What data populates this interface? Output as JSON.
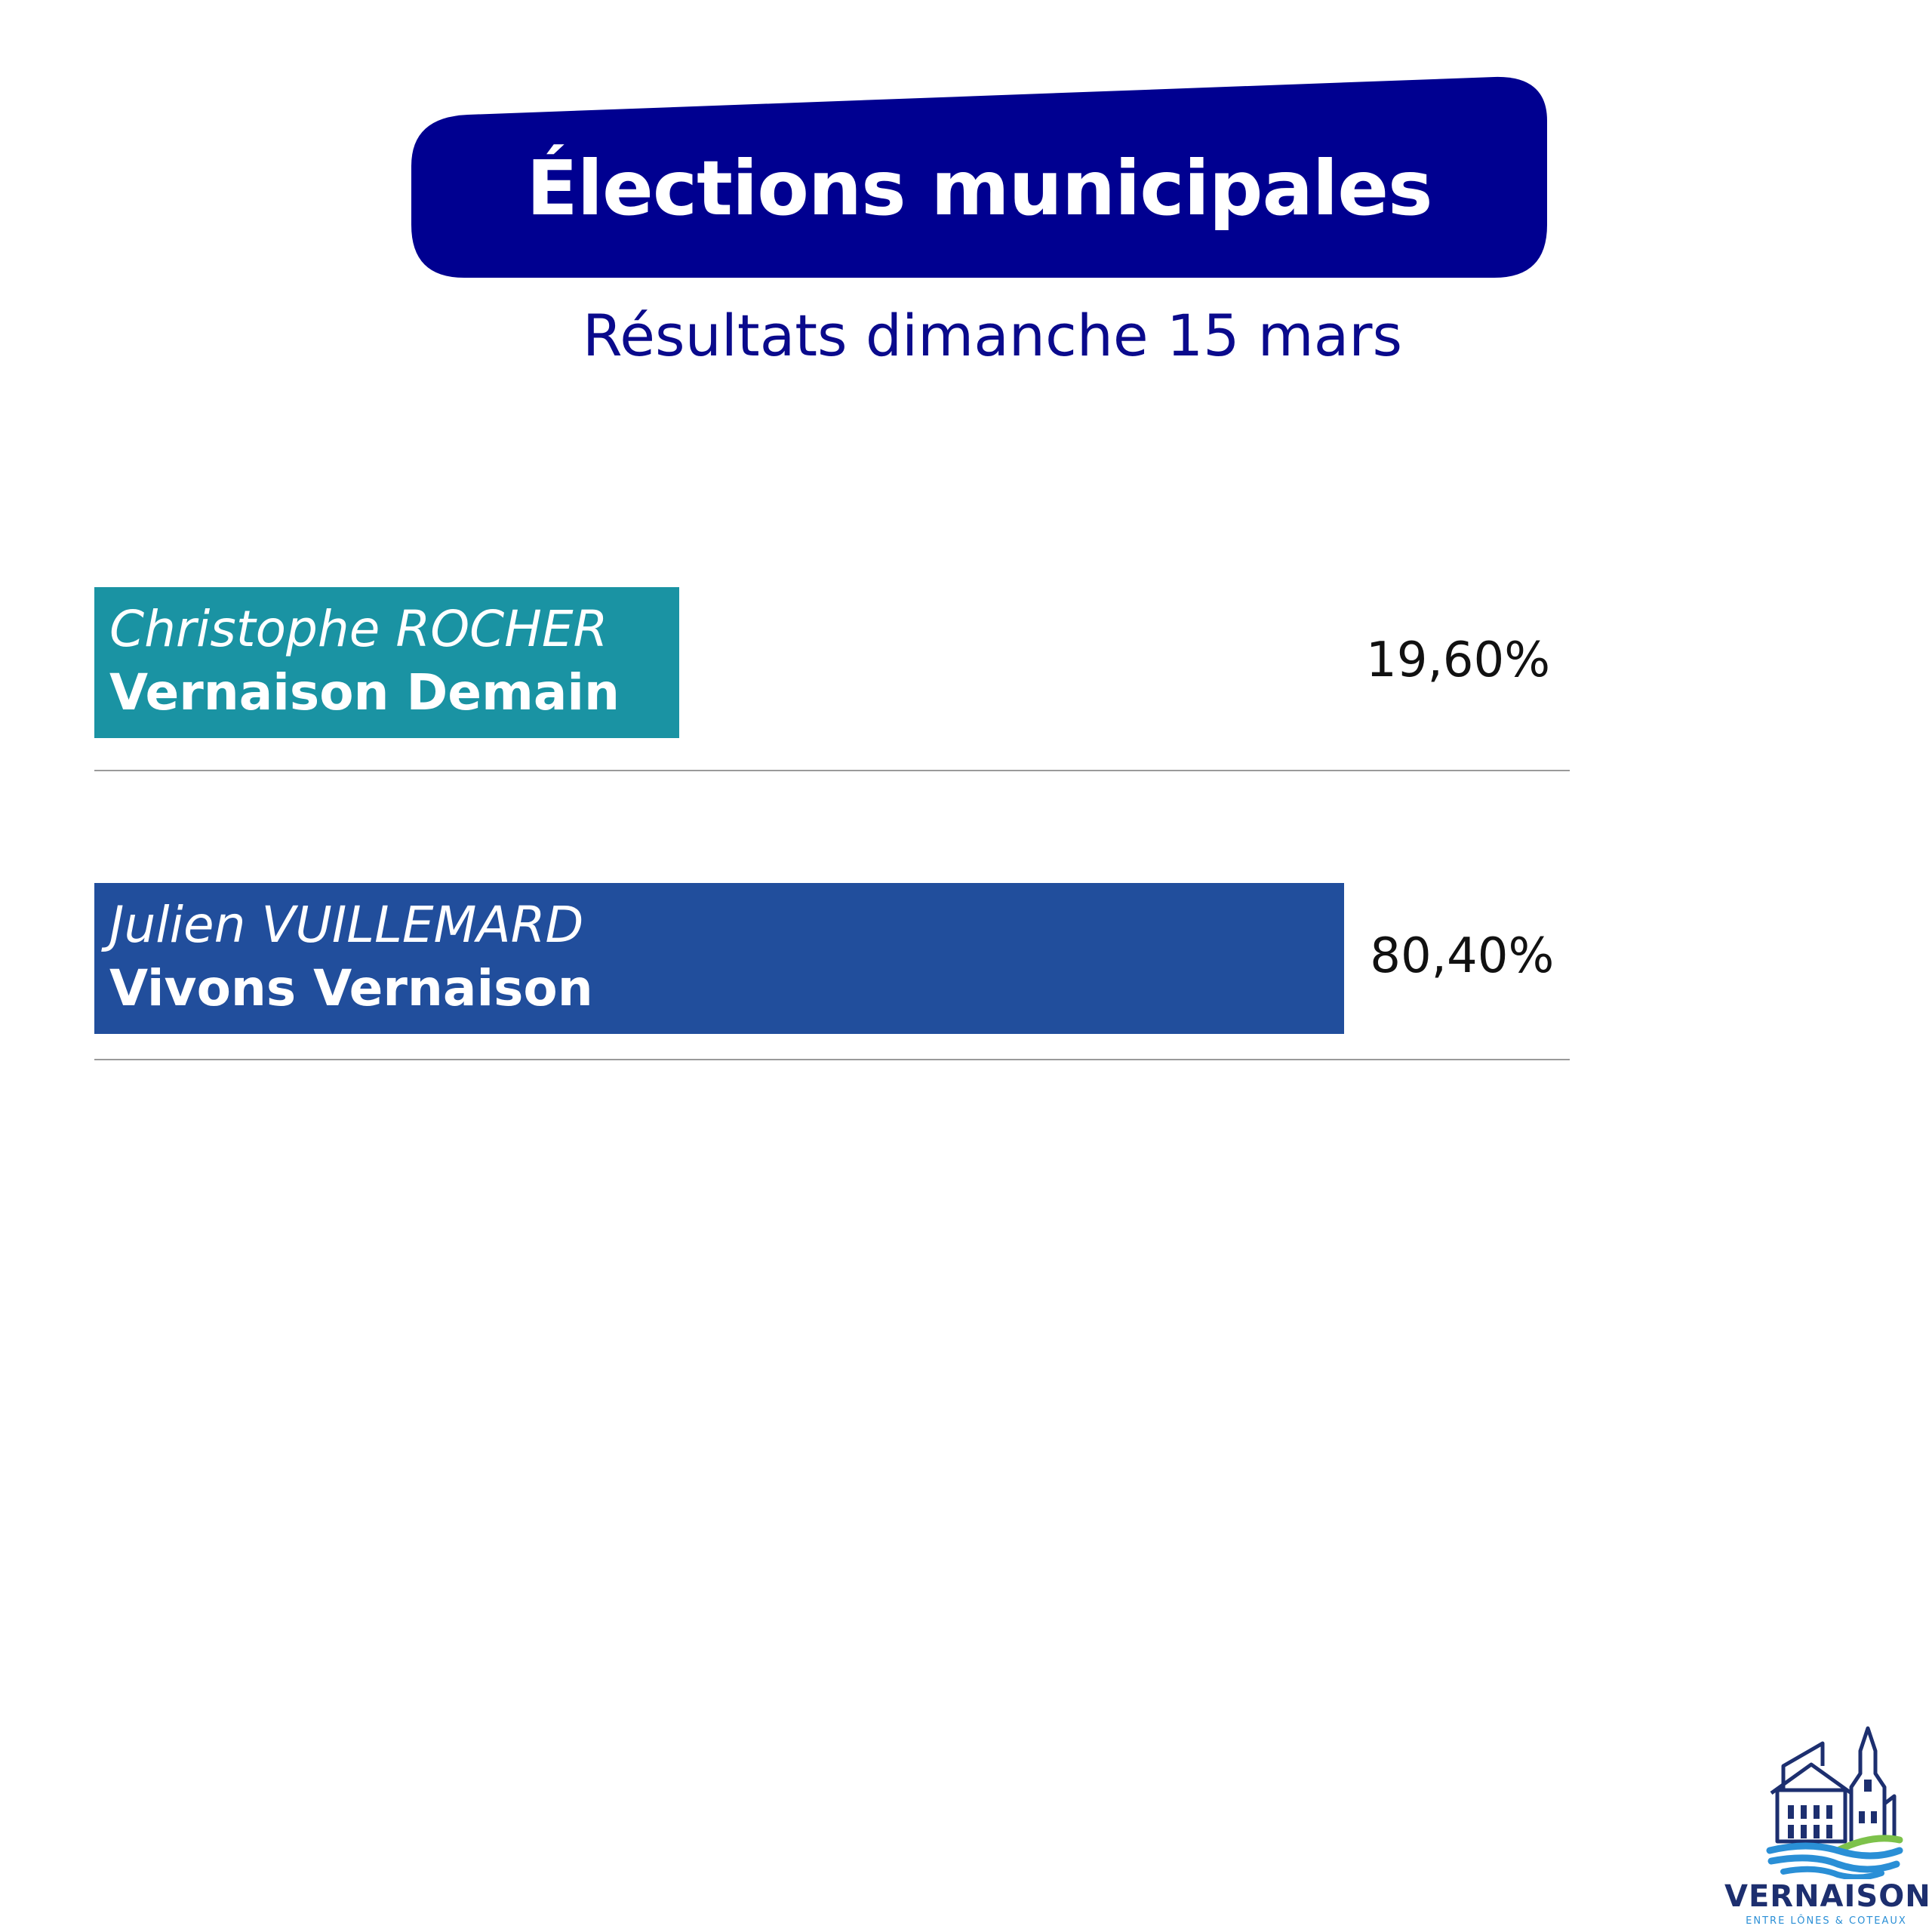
{
  "header": {
    "title": "Élections municipales",
    "subtitle": "Résultats dimanche 15 mars"
  },
  "chart_data": {
    "type": "bar",
    "orientation": "horizontal",
    "xlim": [
      0,
      100
    ],
    "categories": [
      {
        "candidate": "Christophe ROCHER",
        "list": "Vernaison Demain",
        "label": "19,60%",
        "value": 19.6,
        "color": "#1a93a3"
      },
      {
        "candidate": "Julien VUILLEMARD",
        "list": "Vivons Vernaison",
        "label": "80,40%",
        "value": 80.4,
        "color": "#214e9c"
      }
    ]
  },
  "logo": {
    "name": "VERNAISON",
    "tagline": "ENTRE LÔNES & COTEAUX",
    "icon": "village-church-icon"
  },
  "colors": {
    "banner": "#000090",
    "subtitle": "#0a0a8c",
    "logo_navy": "#1d2f6f",
    "logo_blue": "#2a8fd6",
    "logo_green": "#7dc24b"
  }
}
